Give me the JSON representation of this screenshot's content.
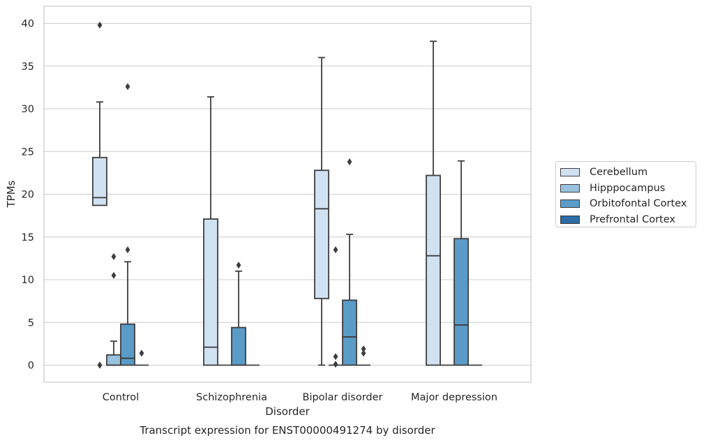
{
  "chart_data": {
    "type": "box",
    "caption": "Transcript expression for ENST00000491274 by disorder",
    "xlabel": "Disorder",
    "ylabel": "TPMs",
    "ylim": [
      -2,
      42
    ],
    "yticks": [
      0,
      5,
      10,
      15,
      20,
      25,
      30,
      35,
      40
    ],
    "grid": true,
    "legend_position": "right",
    "categories": [
      "Control",
      "Schizophrenia",
      "Bipolar disorder",
      "Major depression"
    ],
    "series": [
      {
        "name": "Cerebellum",
        "color": "#d0e1f2",
        "boxes": [
          {
            "q1": 18.7,
            "median": 19.6,
            "q3": 24.3,
            "whisker_low": 18.7,
            "whisker_high": 30.8,
            "outliers": [
              0,
              0,
              39.8
            ]
          },
          {
            "q1": 0,
            "median": 2.1,
            "q3": 17.1,
            "whisker_low": 0,
            "whisker_high": 31.4,
            "outliers": []
          },
          {
            "q1": 7.8,
            "median": 18.3,
            "q3": 22.8,
            "whisker_low": 0,
            "whisker_high": 36.0,
            "outliers": []
          },
          {
            "q1": 0,
            "median": 12.8,
            "q3": 22.2,
            "whisker_low": 0,
            "whisker_high": 37.9,
            "outliers": []
          }
        ]
      },
      {
        "name": "Hipppocampus",
        "color": "#9ac1dd",
        "boxes": [
          {
            "q1": 0,
            "median": 0,
            "q3": 1.2,
            "whisker_low": 0,
            "whisker_high": 2.8,
            "outliers": [
              10.5,
              12.7
            ]
          },
          {
            "q1": 0,
            "median": 0,
            "q3": 0,
            "whisker_low": 0,
            "whisker_high": 0,
            "outliers": []
          },
          {
            "q1": 0,
            "median": 0,
            "q3": 0,
            "whisker_low": 0,
            "whisker_high": 0,
            "outliers": [
              0.1,
              1.0,
              13.5
            ]
          },
          {
            "q1": 0,
            "median": 0,
            "q3": 0,
            "whisker_low": 0,
            "whisker_high": 0,
            "outliers": []
          }
        ]
      },
      {
        "name": "Orbitofontal Cortex",
        "color": "#5a9bc8",
        "boxes": [
          {
            "q1": 0,
            "median": 0.8,
            "q3": 4.8,
            "whisker_low": 0,
            "whisker_high": 12.1,
            "outliers": [
              13.5,
              32.6
            ]
          },
          {
            "q1": 0,
            "median": 0,
            "q3": 4.4,
            "whisker_low": 0,
            "whisker_high": 11.0,
            "outliers": [
              11.7
            ]
          },
          {
            "q1": 0,
            "median": 3.3,
            "q3": 7.6,
            "whisker_low": 0,
            "whisker_high": 15.3,
            "outliers": [
              23.8
            ]
          },
          {
            "q1": 0,
            "median": 4.7,
            "q3": 14.8,
            "whisker_low": 0,
            "whisker_high": 23.9,
            "outliers": []
          }
        ]
      },
      {
        "name": "Prefrontal Cortex",
        "color": "#2d6ca6",
        "boxes": [
          {
            "q1": 0,
            "median": 0,
            "q3": 0,
            "whisker_low": 0,
            "whisker_high": 0,
            "outliers": [
              1.4
            ]
          },
          {
            "q1": 0,
            "median": 0,
            "q3": 0,
            "whisker_low": 0,
            "whisker_high": 0,
            "outliers": []
          },
          {
            "q1": 0,
            "median": 0,
            "q3": 0,
            "whisker_low": 0,
            "whisker_high": 0,
            "outliers": [
              1.4,
              1.9
            ]
          },
          {
            "q1": 0,
            "median": 0,
            "q3": 0,
            "whisker_low": 0,
            "whisker_high": 0,
            "outliers": []
          }
        ]
      }
    ]
  }
}
